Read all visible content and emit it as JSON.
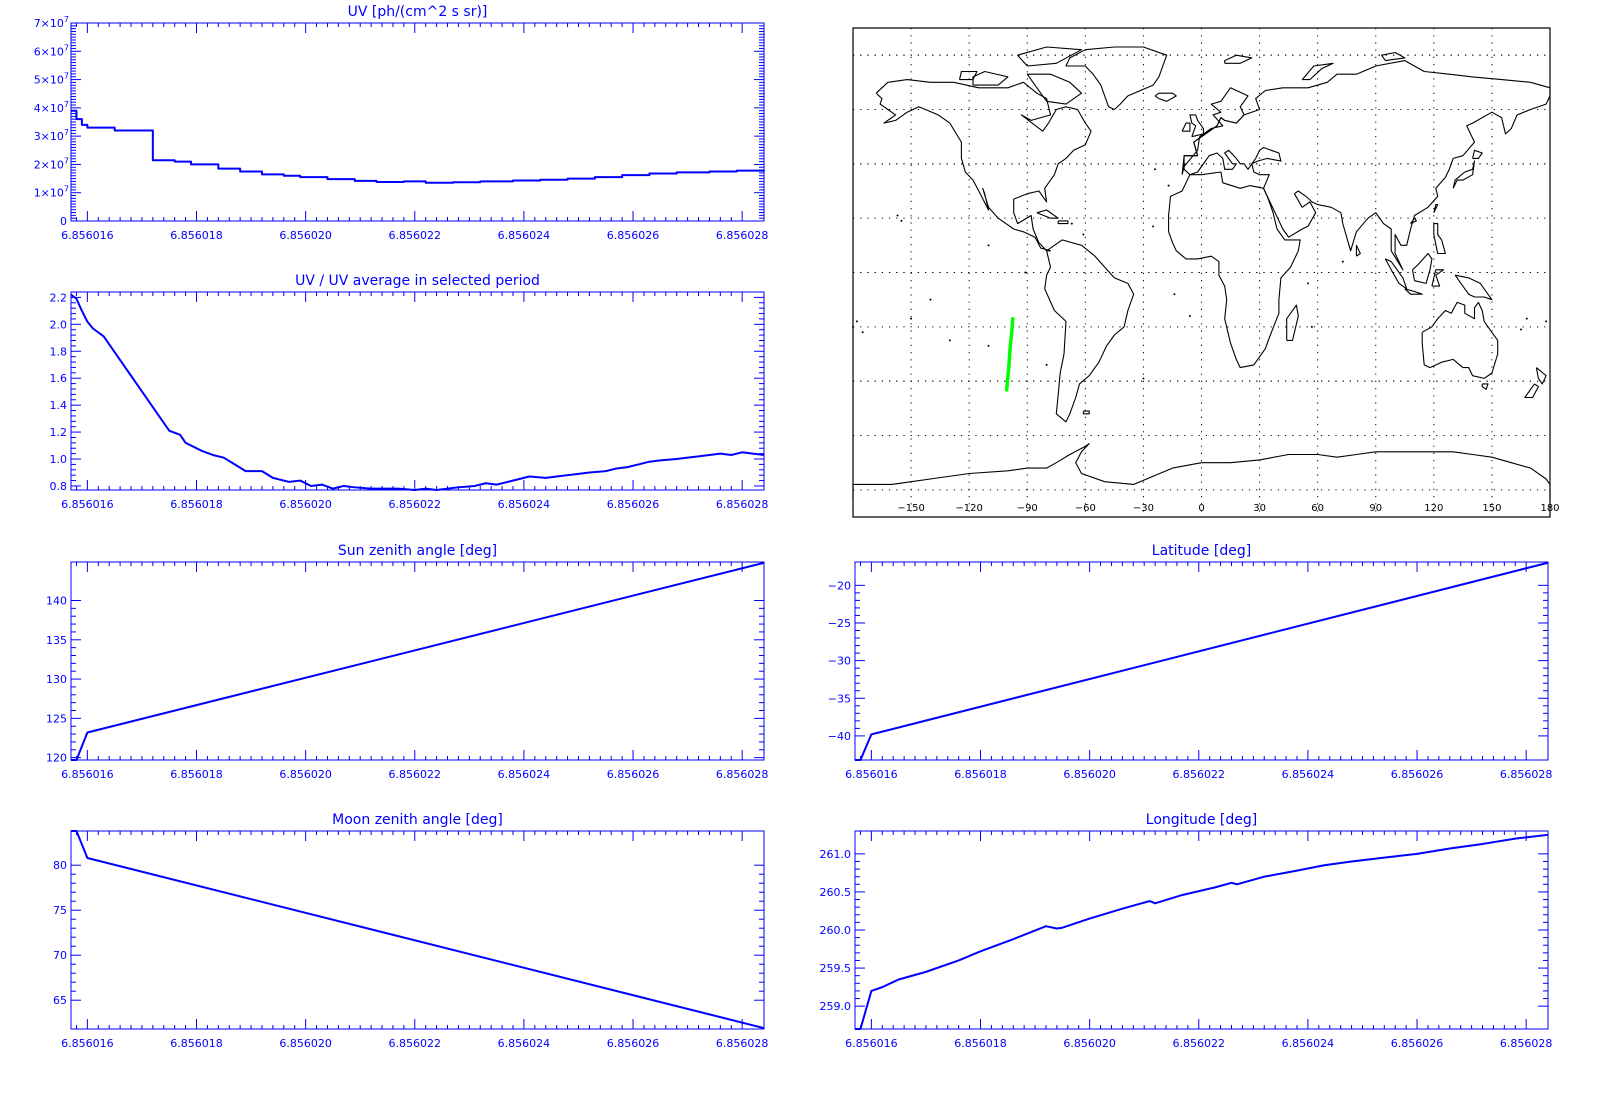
{
  "colors": {
    "axis": "#0000ff",
    "line": "#0000ff",
    "map": "#000000",
    "track": "#00ff00",
    "background": "#ffffff"
  },
  "chart_data": [
    {
      "id": "uv",
      "type": "line",
      "step": true,
      "title": "UV [ph/(cm^2 s sr)]",
      "xlabel": "",
      "ylabel": "",
      "xlim": [
        6.8560157,
        6.8560284
      ],
      "ylim": [
        0,
        70000000
      ],
      "xticks": [
        "6.856016",
        "6.856018",
        "6.856020",
        "6.856022",
        "6.856024",
        "6.856026",
        "6.856028"
      ],
      "yticks": [
        {
          "value": 0,
          "mantissa": "0",
          "exp": ""
        },
        {
          "value": 10000000,
          "mantissa": "1×10",
          "exp": "7"
        },
        {
          "value": 20000000,
          "mantissa": "2×10",
          "exp": "7"
        },
        {
          "value": 30000000,
          "mantissa": "3×10",
          "exp": "7"
        },
        {
          "value": 40000000,
          "mantissa": "4×10",
          "exp": "7"
        },
        {
          "value": 50000000,
          "mantissa": "5×10",
          "exp": "7"
        },
        {
          "value": 60000000,
          "mantissa": "6×10",
          "exp": "7"
        },
        {
          "value": 70000000,
          "mantissa": "7×10",
          "exp": "7"
        }
      ],
      "series": [
        {
          "x": [
            6.8560157,
            6.8560158,
            6.8560159,
            6.856016,
            6.8560165,
            6.8560172,
            6.8560176,
            6.8560179,
            6.8560184,
            6.8560188,
            6.8560192,
            6.8560196,
            6.8560199,
            6.8560204,
            6.8560209,
            6.8560213,
            6.8560218,
            6.8560222,
            6.8560227,
            6.8560232,
            6.8560238,
            6.8560243,
            6.8560248,
            6.8560253,
            6.8560258,
            6.8560263,
            6.8560268,
            6.8560274,
            6.8560279,
            6.8560284
          ],
          "y": [
            39000000,
            36000000,
            34000000,
            33000000,
            32000000,
            21500000,
            21000000,
            20000000,
            18500000,
            17500000,
            16500000,
            16000000,
            15500000,
            14800000,
            14200000,
            13800000,
            14000000,
            13500000,
            13700000,
            14000000,
            14300000,
            14600000,
            15000000,
            15500000,
            16200000,
            16800000,
            17200000,
            17500000,
            17800000,
            18000000
          ]
        }
      ]
    },
    {
      "id": "uv-ratio",
      "type": "line",
      "title": "UV / UV average in selected period",
      "xlabel": "",
      "ylabel": "",
      "xlim": [
        6.8560157,
        6.8560284
      ],
      "ylim": [
        0.77,
        2.24
      ],
      "xticks": [
        "6.856016",
        "6.856018",
        "6.856020",
        "6.856022",
        "6.856024",
        "6.856026",
        "6.856028"
      ],
      "yticks": [
        {
          "value": 0.8,
          "mantissa": "0.8",
          "exp": ""
        },
        {
          "value": 1.0,
          "mantissa": "1.0",
          "exp": ""
        },
        {
          "value": 1.2,
          "mantissa": "1.2",
          "exp": ""
        },
        {
          "value": 1.4,
          "mantissa": "1.4",
          "exp": ""
        },
        {
          "value": 1.6,
          "mantissa": "1.6",
          "exp": ""
        },
        {
          "value": 1.8,
          "mantissa": "1.8",
          "exp": ""
        },
        {
          "value": 2.0,
          "mantissa": "2.0",
          "exp": ""
        },
        {
          "value": 2.2,
          "mantissa": "2.2",
          "exp": ""
        }
      ],
      "series": [
        {
          "x": [
            6.8560157,
            6.8560158,
            6.8560159,
            6.856016,
            6.8560161,
            6.8560163,
            6.8560175,
            6.8560177,
            6.8560178,
            6.8560181,
            6.8560183,
            6.8560185,
            6.8560187,
            6.8560189,
            6.8560192,
            6.8560194,
            6.8560197,
            6.8560199,
            6.8560201,
            6.8560203,
            6.8560205,
            6.8560207,
            6.8560209,
            6.8560212,
            6.8560214,
            6.8560217,
            6.856022,
            6.8560222,
            6.8560224,
            6.8560226,
            6.8560228,
            6.8560231,
            6.8560233,
            6.8560235,
            6.8560237,
            6.8560239,
            6.8560241,
            6.8560244,
            6.8560246,
            6.8560248,
            6.856025,
            6.8560252,
            6.8560255,
            6.8560257,
            6.8560259,
            6.8560261,
            6.8560263,
            6.8560265,
            6.8560268,
            6.856027,
            6.8560272,
            6.8560274,
            6.8560276,
            6.8560278,
            6.856028,
            6.8560282,
            6.8560284
          ],
          "y": [
            2.22,
            2.19,
            2.1,
            2.02,
            1.97,
            1.91,
            1.21,
            1.18,
            1.12,
            1.06,
            1.03,
            1.01,
            0.96,
            0.91,
            0.91,
            0.86,
            0.83,
            0.84,
            0.8,
            0.81,
            0.78,
            0.8,
            0.79,
            0.78,
            0.78,
            0.78,
            0.77,
            0.78,
            0.77,
            0.78,
            0.79,
            0.8,
            0.82,
            0.81,
            0.83,
            0.85,
            0.87,
            0.86,
            0.87,
            0.88,
            0.89,
            0.9,
            0.91,
            0.93,
            0.94,
            0.96,
            0.98,
            0.99,
            1.0,
            1.01,
            1.02,
            1.03,
            1.04,
            1.03,
            1.05,
            1.04,
            1.03
          ]
        }
      ]
    },
    {
      "id": "sun-zenith",
      "type": "line",
      "title": "Sun zenith angle [deg]",
      "xlabel": "",
      "ylabel": "",
      "xlim": [
        6.8560157,
        6.8560284
      ],
      "ylim": [
        119.7,
        144.9
      ],
      "xticks": [
        "6.856016",
        "6.856018",
        "6.856020",
        "6.856022",
        "6.856024",
        "6.856026",
        "6.856028"
      ],
      "yticks": [
        {
          "value": 120,
          "mantissa": "120",
          "exp": ""
        },
        {
          "value": 125,
          "mantissa": "125",
          "exp": ""
        },
        {
          "value": 130,
          "mantissa": "130",
          "exp": ""
        },
        {
          "value": 135,
          "mantissa": "135",
          "exp": ""
        },
        {
          "value": 140,
          "mantissa": "140",
          "exp": ""
        }
      ],
      "series": [
        {
          "x": [
            6.8560157,
            6.8560158,
            6.856016,
            6.8560284
          ],
          "y": [
            119.7,
            119.7,
            123.2,
            144.8
          ]
        }
      ]
    },
    {
      "id": "moon-zenith",
      "type": "line",
      "title": "Moon zenith angle [deg]",
      "xlabel": "",
      "ylabel": "",
      "xlim": [
        6.8560157,
        6.8560284
      ],
      "ylim": [
        61.8,
        83.8
      ],
      "xticks": [
        "6.856016",
        "6.856018",
        "6.856020",
        "6.856022",
        "6.856024",
        "6.856026",
        "6.856028"
      ],
      "yticks": [
        {
          "value": 65,
          "mantissa": "65",
          "exp": ""
        },
        {
          "value": 70,
          "mantissa": "70",
          "exp": ""
        },
        {
          "value": 75,
          "mantissa": "75",
          "exp": ""
        },
        {
          "value": 80,
          "mantissa": "80",
          "exp": ""
        }
      ],
      "series": [
        {
          "x": [
            6.8560157,
            6.8560158,
            6.856016,
            6.8560284
          ],
          "y": [
            83.8,
            83.8,
            80.8,
            61.9
          ]
        }
      ]
    },
    {
      "id": "latitude",
      "type": "line",
      "title": "Latitude [deg]",
      "xlabel": "",
      "ylabel": "",
      "xlim": [
        6.8560157,
        6.8560284
      ],
      "ylim": [
        -43.2,
        -16.9
      ],
      "xticks": [
        "6.856016",
        "6.856018",
        "6.856020",
        "6.856022",
        "6.856024",
        "6.856026",
        "6.856028"
      ],
      "yticks": [
        {
          "value": -40,
          "mantissa": "−40",
          "exp": ""
        },
        {
          "value": -35,
          "mantissa": "−35",
          "exp": ""
        },
        {
          "value": -30,
          "mantissa": "−30",
          "exp": ""
        },
        {
          "value": -25,
          "mantissa": "−25",
          "exp": ""
        },
        {
          "value": -20,
          "mantissa": "−20",
          "exp": ""
        }
      ],
      "series": [
        {
          "x": [
            6.8560157,
            6.8560158,
            6.856016,
            6.8560284
          ],
          "y": [
            -43.2,
            -43.2,
            -39.8,
            -17.0
          ]
        }
      ]
    },
    {
      "id": "longitude",
      "type": "line",
      "title": "Longitude [deg]",
      "xlabel": "",
      "ylabel": "",
      "xlim": [
        6.8560157,
        6.8560284
      ],
      "ylim": [
        258.7,
        261.3
      ],
      "xticks": [
        "6.856016",
        "6.856018",
        "6.856020",
        "6.856022",
        "6.856024",
        "6.856026",
        "6.856028"
      ],
      "yticks": [
        {
          "value": 259.0,
          "mantissa": "259.0",
          "exp": ""
        },
        {
          "value": 259.5,
          "mantissa": "259.5",
          "exp": ""
        },
        {
          "value": 260.0,
          "mantissa": "260.0",
          "exp": ""
        },
        {
          "value": 260.5,
          "mantissa": "260.5",
          "exp": ""
        },
        {
          "value": 261.0,
          "mantissa": "261.0",
          "exp": ""
        }
      ],
      "series": [
        {
          "x": [
            6.8560157,
            6.8560158,
            6.856016,
            6.8560162,
            6.8560165,
            6.856017,
            6.8560176,
            6.856018,
            6.8560186,
            6.8560192,
            6.8560194,
            6.8560195,
            6.85602,
            6.8560206,
            6.8560211,
            6.8560212,
            6.8560217,
            6.8560223,
            6.8560226,
            6.8560227,
            6.8560232,
            6.8560238,
            6.8560243,
            6.8560248,
            6.8560254,
            6.856026,
            6.8560266,
            6.8560272,
            6.8560278,
            6.8560284
          ],
          "y": [
            258.7,
            258.7,
            259.2,
            259.25,
            259.35,
            259.45,
            259.6,
            259.72,
            259.88,
            260.05,
            260.02,
            260.03,
            260.15,
            260.28,
            260.38,
            260.35,
            260.46,
            260.56,
            260.62,
            260.6,
            260.7,
            260.78,
            260.85,
            260.9,
            260.95,
            261.0,
            261.07,
            261.13,
            261.2,
            261.25
          ]
        }
      ]
    },
    {
      "id": "map",
      "type": "map",
      "title": "",
      "projection": "equirectangular",
      "xlim": [
        -180,
        180
      ],
      "ylim": [
        -90,
        90
      ],
      "grid": true,
      "xticks": [
        "−150",
        "−120",
        "−90",
        "−60",
        "−30",
        "0",
        "30",
        "60",
        "90",
        "120",
        "150",
        "180"
      ],
      "track": {
        "lon": [
          -97.5,
          -97.6,
          -97.8,
          -98.1,
          -98.4,
          -98.7,
          -98.9,
          -99.1,
          -99.3,
          -99.5,
          -99.7,
          -99.9,
          -100.1,
          -100.3,
          -100.6
        ],
        "lat": [
          -17.0,
          -18.5,
          -20.5,
          -22.5,
          -24.5,
          -26.5,
          -28.5,
          -30.5,
          -32.5,
          -34.5,
          -36.0,
          -37.5,
          -39.0,
          -40.5,
          -43.2
        ]
      }
    }
  ]
}
